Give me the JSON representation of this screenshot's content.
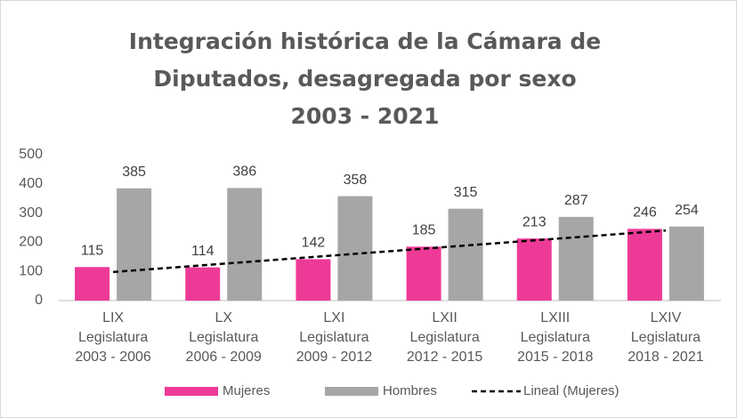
{
  "chart_data": {
    "type": "bar",
    "title": [
      "Integración histórica de la Cámara de",
      "Diputados, desagregada por sexo",
      "2003 - 2021"
    ],
    "categories": [
      [
        "LIX",
        "Legislatura",
        "2003 - 2006"
      ],
      [
        "LX",
        "Legislatura",
        "2006 - 2009"
      ],
      [
        "LXI",
        "Legislatura",
        "2009 - 2012"
      ],
      [
        "LXII",
        "Legislatura",
        "2012 - 2015"
      ],
      [
        "LXIII",
        "Legislatura",
        "2015 - 2018"
      ],
      [
        "LXIV",
        "Legislatura",
        "2018 - 2021"
      ]
    ],
    "series": [
      {
        "name": "Mujeres",
        "color": "#ee3a97",
        "values": [
          115,
          114,
          142,
          185,
          213,
          246
        ]
      },
      {
        "name": "Hombres",
        "color": "#a6a6a6",
        "values": [
          385,
          386,
          358,
          315,
          287,
          254
        ]
      }
    ],
    "trendline": {
      "name": "Lineal (Mujeres)",
      "series": 0,
      "fit": "linear",
      "color": "#000000"
    },
    "ylim": [
      0,
      500
    ],
    "yticks": [
      0,
      100,
      200,
      300,
      400,
      500
    ],
    "grid": false,
    "legend": "bottom"
  }
}
